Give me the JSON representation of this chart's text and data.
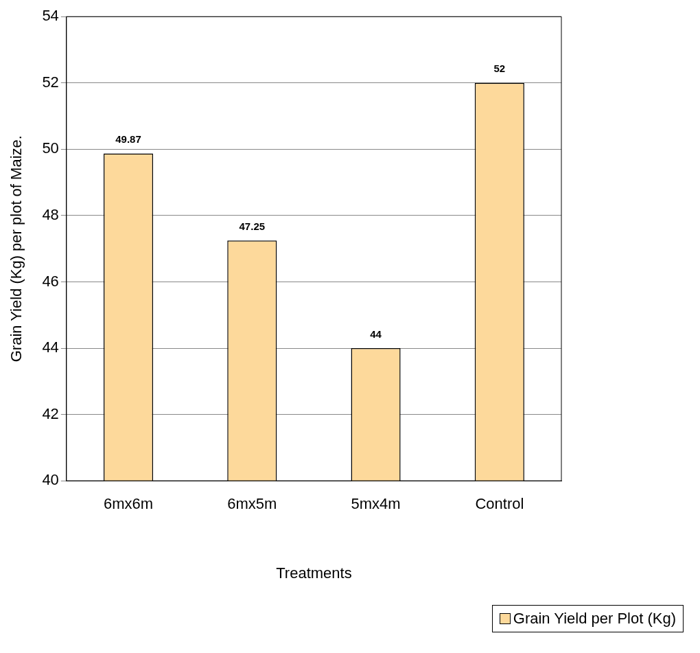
{
  "chart_data": {
    "type": "bar",
    "xlabel": "Treatments",
    "ylabel": "Grain Yield (Kg) per plot of Maize.",
    "categories": [
      "6mx6m",
      "6mx5m",
      "5mx4m",
      "Control"
    ],
    "series": [
      {
        "name": "Grain Yield per Plot (Kg)",
        "color": "#fdd99b",
        "values": [
          49.87,
          47.25,
          44,
          52
        ]
      }
    ],
    "ylim": [
      40,
      54
    ],
    "yticks": [
      40,
      42,
      44,
      46,
      48,
      50,
      52,
      54
    ],
    "grid": "y",
    "data_labels": true,
    "legend": "bottom right"
  }
}
